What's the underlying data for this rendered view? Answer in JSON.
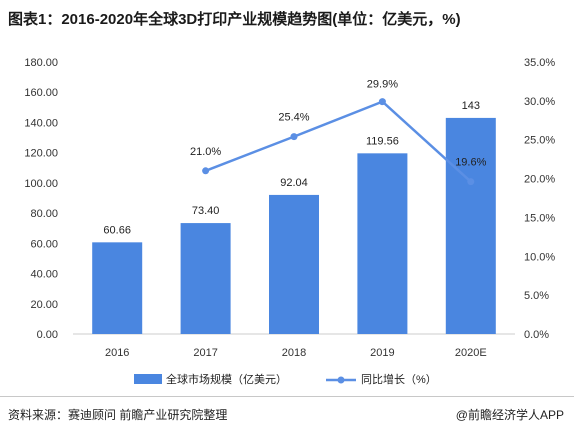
{
  "title": "图表1：2016-2020年全球3D打印产业规模趋势图(单位：亿美元，%)",
  "source": "资料来源：赛迪顾问 前瞻产业研究院整理",
  "brand": "@前瞻经济学人APP",
  "colors": {
    "bar": "#4a86e0",
    "line": "#5b8fe4",
    "axis": "#cccccc"
  },
  "chart_data": {
    "type": "bar",
    "title": "图表1：2016-2020年全球3D打印产业规模趋势图(单位：亿美元，%)",
    "categories": [
      "2016",
      "2017",
      "2018",
      "2019",
      "2020E"
    ],
    "series": [
      {
        "name": "全球市场规模（亿美元）",
        "type": "bar",
        "axis": "left",
        "values": [
          60.66,
          73.4,
          92.04,
          119.56,
          143
        ],
        "labels": [
          "60.66",
          "73.40",
          "92.04",
          "119.56",
          "143"
        ]
      },
      {
        "name": "同比增长（%）",
        "type": "line",
        "axis": "right",
        "values": [
          null,
          21.0,
          25.4,
          29.9,
          19.6
        ],
        "labels": [
          "",
          "21.0%",
          "25.4%",
          "29.9%",
          "19.6%"
        ]
      }
    ],
    "y_left": {
      "range": [
        0,
        180
      ],
      "ticks": [
        "0.00",
        "20.00",
        "40.00",
        "60.00",
        "80.00",
        "100.00",
        "120.00",
        "140.00",
        "160.00",
        "180.00"
      ]
    },
    "y_right": {
      "range": [
        0,
        35
      ],
      "ticks": [
        "0.0%",
        "5.0%",
        "10.0%",
        "15.0%",
        "20.0%",
        "25.0%",
        "30.0%",
        "35.0%"
      ]
    },
    "grid": false,
    "legend": "bottom"
  }
}
